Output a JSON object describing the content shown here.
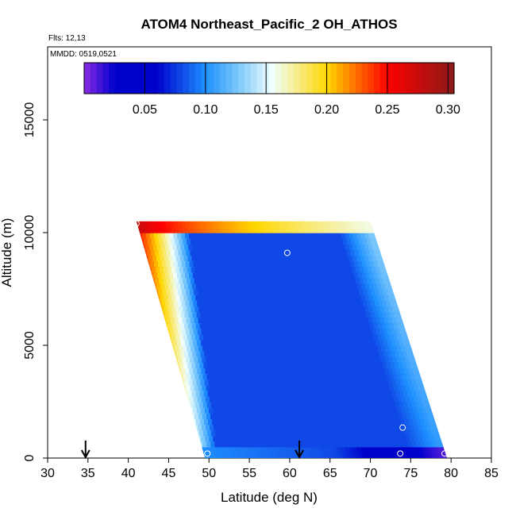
{
  "chart_data": {
    "type": "heatmap",
    "title": "ATOM4 Northeast_Pacific_2 OH_ATHOS",
    "flights_note": "Flts: 12,13",
    "date_note": "MMDD: 0519,0521",
    "xlabel": "Latitude (deg N)",
    "ylabel": "Altitude (m)",
    "xlim": [
      30,
      85
    ],
    "ylim": [
      0,
      17500
    ],
    "x_ticks": [
      "30",
      "35",
      "40",
      "45",
      "50",
      "55",
      "60",
      "65",
      "70",
      "75",
      "80",
      "85"
    ],
    "y_ticks": [
      "0",
      "5000",
      "10000",
      "15000"
    ],
    "colorbar": {
      "range": [
        0.0,
        0.305
      ],
      "tick_values": [
        0.05,
        0.1,
        0.15,
        0.2,
        0.25,
        0.3
      ],
      "tick_labels": [
        "0.05",
        "0.10",
        "0.15",
        "0.20",
        "0.25",
        "0.30"
      ]
    },
    "field": {
      "lower_left_corner_lat": 49.5,
      "upper_left_corner_lat": 41.0,
      "lower_right_corner_lat": 79.5,
      "upper_right_corner_lat": 70.0,
      "bottom_altitude": 0,
      "top_altitude": 10500,
      "upper_band_altitude": [
        10000,
        10500
      ],
      "lower_band_altitude": [
        0,
        500
      ],
      "interior_value": 0.08,
      "left_edge_value": 0.25,
      "upper_band_left_value": 0.29,
      "upper_band_right_value": 0.16,
      "lower_band_right_value": 0.01
    },
    "sample_points": [
      {
        "lat": 41.0,
        "alt": 10400
      },
      {
        "lat": 59.7,
        "alt": 9100
      },
      {
        "lat": 74.0,
        "alt": 1350
      },
      {
        "lat": 73.7,
        "alt": 200
      },
      {
        "lat": 79.2,
        "alt": 200
      },
      {
        "lat": 49.8,
        "alt": 200
      }
    ],
    "arrows_lat": [
      34.7,
      61.2
    ],
    "grid": false,
    "legend": "colorbar-top"
  }
}
